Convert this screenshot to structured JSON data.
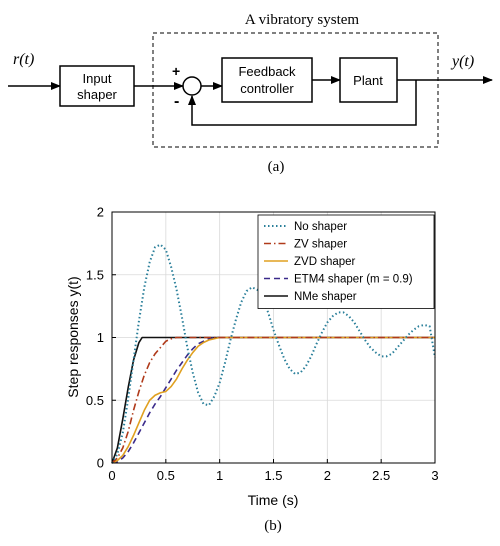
{
  "diagram": {
    "system_title": "A vibratory system",
    "input_label": "r(t)",
    "output_label": "y(t)",
    "blocks": {
      "shaper_line1": "Input",
      "shaper_line2": "shaper",
      "controller_line1": "Feedback",
      "controller_line2": "controller",
      "plant": "Plant"
    },
    "sum_plus": "+",
    "sum_minus": "-",
    "caption": "(a)"
  },
  "chart_caption": "(b)",
  "chart_data": {
    "type": "line",
    "title": "",
    "xlabel": "Time (s)",
    "ylabel": "Step responses y(t)",
    "xlim": [
      0,
      3
    ],
    "ylim": [
      0,
      2
    ],
    "xticks": [
      0,
      0.5,
      1,
      1.5,
      2,
      2.5,
      3
    ],
    "yticks": [
      0,
      0.5,
      1,
      1.5,
      2
    ],
    "xtick_labels": [
      "0",
      "0.5",
      "1",
      "1.5",
      "2",
      "2.5",
      "3"
    ],
    "ytick_labels": [
      "0",
      "0.5",
      "1",
      "1.5",
      "2"
    ],
    "grid": true,
    "legend_position": "top-right",
    "series": [
      {
        "name": "No shaper",
        "color": "#2a7f9a",
        "style": "dotted",
        "x": [
          0,
          0.05,
          0.1,
          0.15,
          0.2,
          0.25,
          0.3,
          0.35,
          0.4,
          0.45,
          0.5,
          0.55,
          0.6,
          0.65,
          0.7,
          0.75,
          0.8,
          0.85,
          0.9,
          0.95,
          1.0,
          1.05,
          1.1,
          1.15,
          1.2,
          1.25,
          1.3,
          1.35,
          1.4,
          1.45,
          1.5,
          1.55,
          1.6,
          1.65,
          1.7,
          1.75,
          1.8,
          1.85,
          1.9,
          1.95,
          2.0,
          2.05,
          2.1,
          2.15,
          2.2,
          2.25,
          2.3,
          2.35,
          2.4,
          2.45,
          2.5,
          2.55,
          2.6,
          2.65,
          2.7,
          2.75,
          2.8,
          2.85,
          2.9,
          2.95,
          3.0
        ],
        "y": [
          0,
          0.07,
          0.24,
          0.51,
          0.82,
          1.13,
          1.4,
          1.6,
          1.72,
          1.74,
          1.7,
          1.56,
          1.38,
          1.16,
          0.92,
          0.72,
          0.56,
          0.47,
          0.46,
          0.53,
          0.64,
          0.8,
          0.98,
          1.14,
          1.28,
          1.37,
          1.4,
          1.38,
          1.31,
          1.2,
          1.06,
          0.94,
          0.83,
          0.75,
          0.71,
          0.72,
          0.77,
          0.85,
          0.95,
          1.04,
          1.12,
          1.17,
          1.2,
          1.2,
          1.17,
          1.12,
          1.05,
          0.98,
          0.92,
          0.88,
          0.85,
          0.85,
          0.87,
          0.92,
          0.97,
          1.02,
          1.06,
          1.09,
          1.1,
          1.09,
          0.84
        ]
      },
      {
        "name": "ZV shaper",
        "color": "#b03a1a",
        "style": "dashdot",
        "x": [
          0,
          0.05,
          0.1,
          0.15,
          0.2,
          0.25,
          0.3,
          0.35,
          0.4,
          0.45,
          0.5,
          0.55,
          0.6,
          3.0
        ],
        "y": [
          0,
          0.04,
          0.12,
          0.25,
          0.42,
          0.57,
          0.7,
          0.8,
          0.87,
          0.92,
          0.97,
          0.99,
          1.0,
          1.0
        ]
      },
      {
        "name": "ZVD shaper",
        "color": "#e0a020",
        "style": "solid",
        "x": [
          0,
          0.05,
          0.1,
          0.15,
          0.2,
          0.25,
          0.3,
          0.35,
          0.4,
          0.45,
          0.5,
          0.55,
          0.6,
          0.65,
          0.7,
          0.75,
          0.8,
          0.85,
          0.9,
          0.95,
          1.0,
          3.0
        ],
        "y": [
          0,
          0.02,
          0.06,
          0.13,
          0.22,
          0.32,
          0.42,
          0.5,
          0.54,
          0.56,
          0.57,
          0.61,
          0.67,
          0.75,
          0.82,
          0.88,
          0.93,
          0.96,
          0.98,
          0.99,
          1.0,
          1.0
        ]
      },
      {
        "name": "ETM4 shaper (m = 0.9)",
        "color": "#3a2a8a",
        "style": "dashed",
        "x": [
          0,
          0.05,
          0.1,
          0.15,
          0.2,
          0.25,
          0.3,
          0.35,
          0.4,
          0.45,
          0.5,
          0.55,
          0.6,
          0.65,
          0.7,
          0.75,
          0.8,
          0.85,
          0.9,
          0.95,
          1.0,
          3.0
        ],
        "y": [
          0,
          0.01,
          0.04,
          0.09,
          0.16,
          0.24,
          0.32,
          0.4,
          0.47,
          0.53,
          0.6,
          0.67,
          0.74,
          0.8,
          0.86,
          0.91,
          0.95,
          0.97,
          0.99,
          1.0,
          1.0,
          1.0
        ]
      },
      {
        "name": "NMe shaper",
        "color": "#111111",
        "style": "solid",
        "x": [
          0,
          0.05,
          0.1,
          0.15,
          0.2,
          0.25,
          0.28,
          0.3,
          3.0
        ],
        "y": [
          0,
          0.12,
          0.35,
          0.6,
          0.82,
          0.96,
          1.0,
          1.0,
          1.0
        ]
      }
    ]
  }
}
